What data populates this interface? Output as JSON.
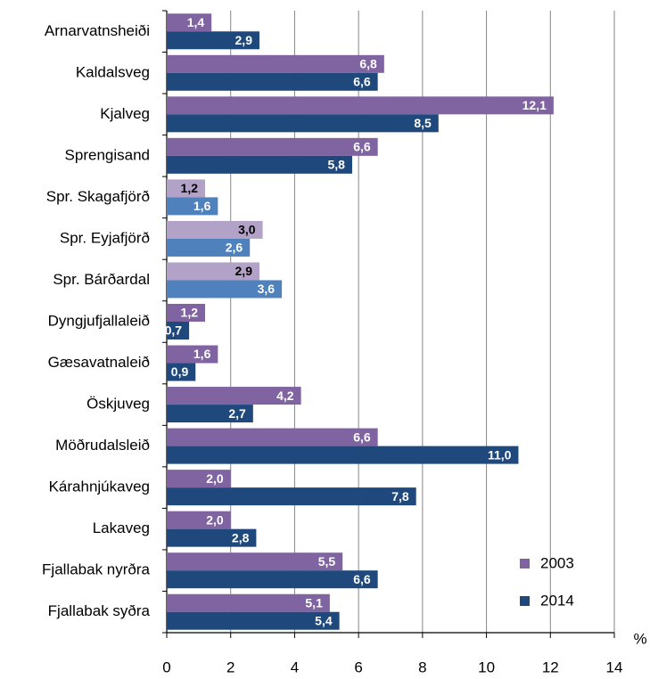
{
  "chart_data": {
    "type": "hbar",
    "categories": [
      "Arnarvatnsheiði",
      "Kaldalsveg",
      "Kjalveg",
      "Sprengisand",
      "Spr. Skagafjörð",
      "Spr. Eyjafjörð",
      "Spr. Bárðardal",
      "Dyngjufjallaleið",
      "Gæsavatnaleið",
      "Öskjuveg",
      "Möðrudalsleið",
      "Kárahnjúkaveg",
      "Lakaveg",
      "Fjallabak nyrðra",
      "Fjallabak syðra"
    ],
    "series": [
      {
        "name": "2003",
        "color": "#8064a2",
        "colors": [
          "#8064a2",
          "#8064a2",
          "#8064a2",
          "#8064a2",
          "#b3a2c7",
          "#b3a2c7",
          "#b3a2c7",
          "#8064a2",
          "#8064a2",
          "#8064a2",
          "#8064a2",
          "#8064a2",
          "#8064a2",
          "#8064a2",
          "#8064a2"
        ],
        "values": [
          1.4,
          6.8,
          12.1,
          6.6,
          1.2,
          3.0,
          2.9,
          1.2,
          1.6,
          4.2,
          6.6,
          2.0,
          2.0,
          5.5,
          5.1
        ],
        "value_labels": [
          "1,4",
          "6,8",
          "12,1",
          "6,6",
          "1,2",
          "3,0",
          "2,9",
          "1,2",
          "1,6",
          "4,2",
          "6,6",
          "2,0",
          "2,0",
          "5,5",
          "5,1"
        ]
      },
      {
        "name": "2014",
        "color": "#1f497d",
        "colors": [
          "#1f497d",
          "#1f497d",
          "#1f497d",
          "#1f497d",
          "#4f81bd",
          "#4f81bd",
          "#4f81bd",
          "#1f497d",
          "#1f497d",
          "#1f497d",
          "#1f497d",
          "#1f497d",
          "#1f497d",
          "#1f497d",
          "#1f497d"
        ],
        "values": [
          2.9,
          6.6,
          8.5,
          5.8,
          1.6,
          2.6,
          3.6,
          0.7,
          0.9,
          2.7,
          11.0,
          7.8,
          2.8,
          6.6,
          5.4
        ],
        "value_labels": [
          "2,9",
          "6,6",
          "8,5",
          "5,8",
          "1,6",
          "2,6",
          "3,6",
          "0,7",
          "0,9",
          "2,7",
          "11,0",
          "7,8",
          "2,8",
          "6,6",
          "5,4"
        ]
      }
    ],
    "x_label": "%",
    "xlim": [
      0,
      14
    ],
    "xticks": [
      0,
      2,
      4,
      6,
      8,
      10,
      12,
      14
    ],
    "grid": true,
    "legend": "bottom-right"
  }
}
